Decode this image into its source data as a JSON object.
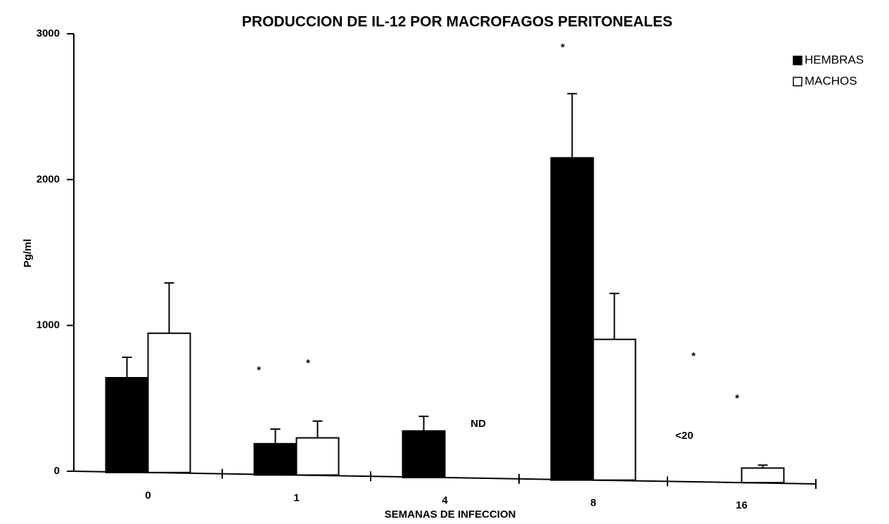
{
  "chart_data": {
    "type": "bar",
    "title": "PRODUCCION DE IL-12 POR MACROFAGOS PERITONEALES",
    "x_label": "SEMANAS DE INFECCION",
    "y_label": "Pg/ml",
    "categories": [
      "0",
      "1",
      "4",
      "8",
      "16"
    ],
    "series": [
      {
        "name": "HEMBRAS",
        "color": "#000000",
        "values": [
          650,
          215,
          320,
          2210,
          null
        ],
        "errors": [
          140,
          100,
          100,
          440,
          null
        ]
      },
      {
        "name": "MACHOS",
        "color": "#ffffff",
        "values": [
          955,
          255,
          null,
          965,
          100
        ],
        "errors": [
          345,
          115,
          null,
          315,
          20
        ]
      }
    ],
    "annotations": [
      "*",
      "*",
      "ND",
      "*",
      "*",
      "<20",
      "*"
    ],
    "ylim": [
      0,
      3000
    ],
    "yticks": [
      0,
      1000,
      2000,
      3000
    ],
    "legend": "top-right",
    "grid": false
  }
}
